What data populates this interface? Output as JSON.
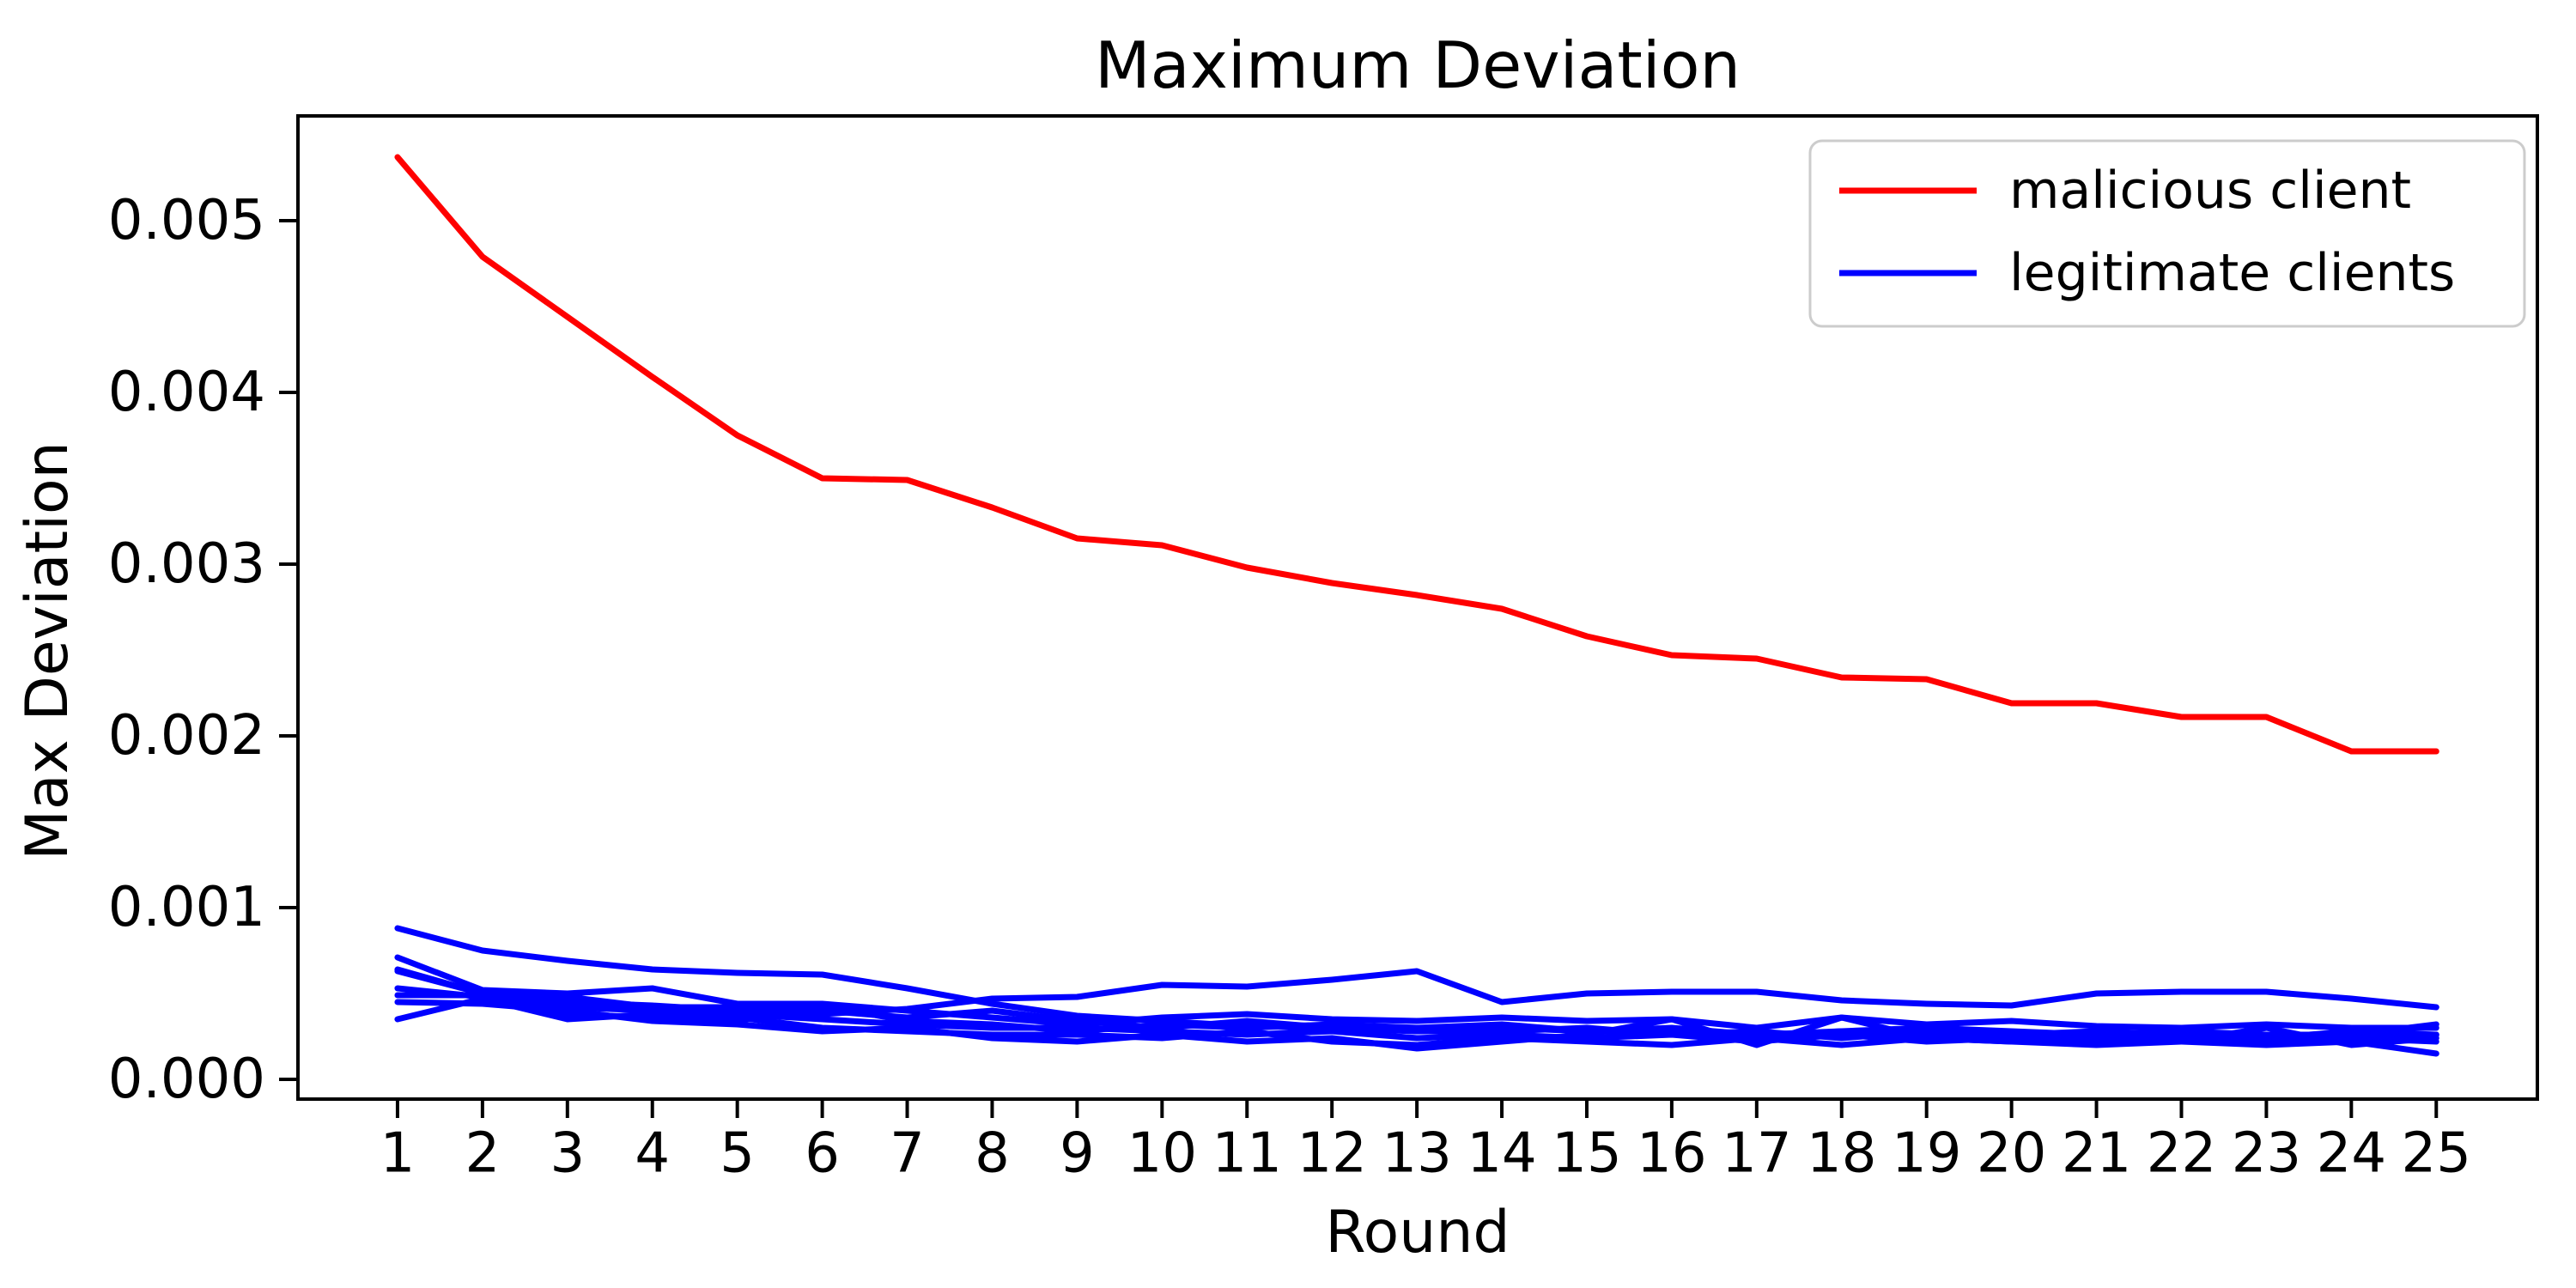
{
  "figure": {
    "background": "#ffffff",
    "text_color": "#000000",
    "spine_color": "#000000"
  },
  "chart_data": {
    "type": "line",
    "title": "Maximum Deviation",
    "xlabel": "Round",
    "ylabel": "Max Deviation",
    "grid": false,
    "xlim": [
      -0.172,
      26.19
    ],
    "ylim": [
      -0.000115,
      0.00561
    ],
    "x_ticks": [
      1,
      2,
      3,
      4,
      5,
      6,
      7,
      8,
      9,
      10,
      11,
      12,
      13,
      14,
      15,
      16,
      17,
      18,
      19,
      20,
      21,
      22,
      23,
      24,
      25
    ],
    "y_ticks": [
      0.0,
      0.001,
      0.002,
      0.003,
      0.004,
      0.005
    ],
    "y_tick_labels": [
      "0.000",
      "0.001",
      "0.002",
      "0.003",
      "0.004",
      "0.005"
    ],
    "legend": {
      "position": "upper right",
      "entries": [
        {
          "label": "malicious client",
          "color": "#ff0000"
        },
        {
          "label": "legitimate clients",
          "color": "#0000ff"
        }
      ]
    },
    "x": [
      1,
      2,
      3,
      4,
      5,
      6,
      7,
      8,
      9,
      10,
      11,
      12,
      13,
      14,
      15,
      16,
      17,
      18,
      19,
      20,
      21,
      22,
      23,
      24,
      25
    ],
    "malicious_series": {
      "name": "malicious client",
      "color": "#ff0000",
      "values": [
        0.00537,
        0.00479,
        0.00444,
        0.00409,
        0.00375,
        0.0035,
        0.00349,
        0.00333,
        0.00315,
        0.00311,
        0.00298,
        0.00289,
        0.00282,
        0.00274,
        0.00258,
        0.00247,
        0.00245,
        0.00234,
        0.00233,
        0.00219,
        0.00219,
        0.00211,
        0.00211,
        0.00191,
        0.00191
      ]
    },
    "legitimate_series": {
      "name": "legitimate clients",
      "color": "#0000ff",
      "lines": [
        [
          0.00088,
          0.00075,
          0.00069,
          0.00064,
          0.00062,
          0.00061,
          0.00053,
          0.00044,
          0.00037,
          0.00034,
          0.00031,
          0.0003,
          0.00028,
          0.0003,
          0.00028,
          0.00027,
          0.00025,
          0.00028,
          0.00025,
          0.00027,
          0.00025,
          0.00024,
          0.00026,
          0.00024,
          0.00026
        ],
        [
          0.00063,
          0.0005,
          0.00045,
          0.00043,
          0.0004,
          0.00038,
          0.00041,
          0.00047,
          0.00048,
          0.00055,
          0.00054,
          0.00058,
          0.00063,
          0.00045,
          0.0005,
          0.00051,
          0.00051,
          0.00046,
          0.00044,
          0.00043,
          0.0005,
          0.00051,
          0.00051,
          0.00047,
          0.00042
        ],
        [
          0.00071,
          0.00052,
          0.0005,
          0.00053,
          0.00044,
          0.00044,
          0.0004,
          0.00036,
          0.00032,
          0.00036,
          0.00038,
          0.00035,
          0.00034,
          0.00036,
          0.00034,
          0.00035,
          0.0003,
          0.00036,
          0.00032,
          0.00034,
          0.00031,
          0.0003,
          0.00032,
          0.0003,
          0.0003
        ],
        [
          0.00064,
          0.0005,
          0.00048,
          0.00042,
          0.00042,
          0.0004,
          0.00036,
          0.0004,
          0.00034,
          0.0003,
          0.00034,
          0.0003,
          0.00028,
          0.00028,
          0.0003,
          0.00026,
          0.00028,
          0.00024,
          0.00028,
          0.00026,
          0.00028,
          0.00026,
          0.00024,
          0.00028,
          0.00026
        ],
        [
          0.00053,
          0.00048,
          0.00042,
          0.0004,
          0.00038,
          0.00035,
          0.00032,
          0.0003,
          0.0003,
          0.00028,
          0.00026,
          0.00028,
          0.00024,
          0.00026,
          0.00024,
          0.00026,
          0.00022,
          0.00026,
          0.00022,
          0.00024,
          0.00022,
          0.00024,
          0.00022,
          0.00024,
          0.00022
        ],
        [
          0.00049,
          0.00049,
          0.00038,
          0.00036,
          0.00036,
          0.0003,
          0.00028,
          0.00026,
          0.00026,
          0.00024,
          0.00028,
          0.00022,
          0.0002,
          0.00024,
          0.00022,
          0.0002,
          0.00024,
          0.0002,
          0.00024,
          0.00022,
          0.0002,
          0.00022,
          0.0002,
          0.00022,
          0.00015
        ],
        [
          0.00045,
          0.00044,
          0.0004,
          0.00034,
          0.00032,
          0.00028,
          0.0003,
          0.00024,
          0.00022,
          0.00026,
          0.00022,
          0.00024,
          0.00018,
          0.00022,
          0.00026,
          0.00035,
          0.0002,
          0.00036,
          0.00024,
          0.00022,
          0.00024,
          0.00022,
          0.0003,
          0.0002,
          0.00024
        ],
        [
          0.00035,
          0.00047,
          0.00035,
          0.00038,
          0.00034,
          0.00043,
          0.00034,
          0.00032,
          0.00028,
          0.00032,
          0.0003,
          0.00032,
          0.0003,
          0.00032,
          0.00028,
          0.0003,
          0.00026,
          0.00028,
          0.0003,
          0.00028,
          0.00026,
          0.00028,
          0.00026,
          0.00026,
          0.00032
        ]
      ]
    }
  }
}
